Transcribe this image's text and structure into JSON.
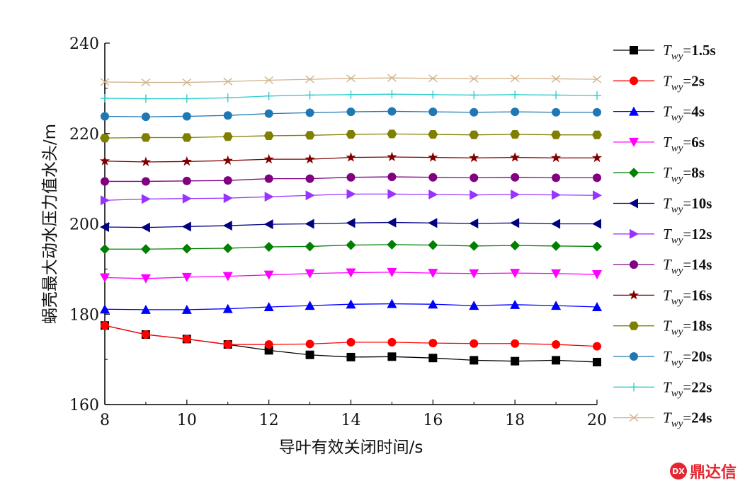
{
  "chart_data": {
    "type": "line",
    "xlabel": "导叶有效关闭时间/s",
    "ylabel": "蜗壳最大动水压力值水头/m",
    "xlim": [
      8,
      20
    ],
    "ylim": [
      160,
      240
    ],
    "xticks": [
      "8",
      "10",
      "12",
      "14",
      "16",
      "18",
      "20"
    ],
    "yticks": [
      "160",
      "180",
      "200",
      "220",
      "240"
    ],
    "grid": false,
    "legend_position": "right",
    "x": [
      8,
      9,
      10,
      11,
      12,
      13,
      14,
      15,
      16,
      17,
      18,
      19,
      20
    ],
    "series": [
      {
        "name": "Twy=1.5s",
        "symbol": "T",
        "sub": "wy",
        "eq": "=",
        "value": "1.5",
        "unit": "s",
        "color": "#000000",
        "marker": "square",
        "values": [
          177.5,
          175.5,
          174.5,
          173.3,
          172.0,
          171.0,
          170.5,
          170.6,
          170.3,
          169.8,
          169.6,
          169.8,
          169.4
        ]
      },
      {
        "name": "Twy=2s",
        "symbol": "T",
        "sub": "wy",
        "eq": "=",
        "value": "2",
        "unit": "s",
        "color": "#ff0000",
        "marker": "circle",
        "values": [
          177.5,
          175.5,
          174.5,
          173.3,
          173.3,
          173.4,
          173.8,
          173.8,
          173.6,
          173.5,
          173.5,
          173.3,
          172.9
        ]
      },
      {
        "name": "Twy=4s",
        "symbol": "T",
        "sub": "wy",
        "eq": "=",
        "value": "4",
        "unit": "s",
        "color": "#0000ff",
        "marker": "triangle-up",
        "values": [
          181.1,
          181.0,
          181.0,
          181.2,
          181.6,
          181.9,
          182.2,
          182.3,
          182.2,
          181.9,
          182.1,
          181.9,
          181.6
        ]
      },
      {
        "name": "Twy=6s",
        "symbol": "T",
        "sub": "wy",
        "eq": "=",
        "value": "6",
        "unit": "s",
        "color": "#ff00ff",
        "marker": "triangle-down",
        "values": [
          188.1,
          187.9,
          188.2,
          188.4,
          188.7,
          189.0,
          189.2,
          189.3,
          189.1,
          189.0,
          189.1,
          189.0,
          188.8
        ]
      },
      {
        "name": "Twy=8s",
        "symbol": "T",
        "sub": "wy",
        "eq": "=",
        "value": "8",
        "unit": "s",
        "color": "#008000",
        "marker": "diamond",
        "values": [
          194.4,
          194.4,
          194.5,
          194.6,
          194.9,
          195.0,
          195.3,
          195.4,
          195.3,
          195.1,
          195.2,
          195.1,
          195.0
        ]
      },
      {
        "name": "Twy=10s",
        "symbol": "T",
        "sub": "wy",
        "eq": "=",
        "value": "10",
        "unit": "s",
        "color": "#000080",
        "marker": "triangle-left",
        "values": [
          199.3,
          199.2,
          199.4,
          199.6,
          199.9,
          200.0,
          200.2,
          200.3,
          200.2,
          200.1,
          200.2,
          200.0,
          200.0
        ]
      },
      {
        "name": "Twy=12s",
        "symbol": "T",
        "sub": "wy",
        "eq": "=",
        "value": "12",
        "unit": "s",
        "color": "#9933ff",
        "marker": "triangle-right",
        "values": [
          205.2,
          205.5,
          205.6,
          205.7,
          206.0,
          206.3,
          206.6,
          206.6,
          206.5,
          206.4,
          206.5,
          206.4,
          206.3
        ]
      },
      {
        "name": "Twy=14s",
        "symbol": "T",
        "sub": "wy",
        "eq": "=",
        "value": "14",
        "unit": "s",
        "color": "#800080",
        "marker": "circle",
        "values": [
          209.4,
          209.4,
          209.5,
          209.6,
          210.0,
          210.0,
          210.3,
          210.4,
          210.3,
          210.2,
          210.3,
          210.2,
          210.2
        ]
      },
      {
        "name": "Twy=16s",
        "symbol": "T",
        "sub": "wy",
        "eq": "=",
        "value": "16",
        "unit": "s",
        "color": "#800000",
        "marker": "star",
        "values": [
          213.9,
          213.7,
          213.8,
          214.0,
          214.3,
          214.3,
          214.7,
          214.8,
          214.7,
          214.6,
          214.7,
          214.6,
          214.6
        ]
      },
      {
        "name": "Twy=18s",
        "symbol": "T",
        "sub": "wy",
        "eq": "=",
        "value": "18",
        "unit": "s",
        "color": "#808000",
        "marker": "hexagon",
        "values": [
          219.0,
          219.1,
          219.1,
          219.3,
          219.5,
          219.6,
          219.8,
          219.9,
          219.8,
          219.7,
          219.8,
          219.7,
          219.7
        ]
      },
      {
        "name": "Twy=20s",
        "symbol": "T",
        "sub": "wy",
        "eq": "=",
        "value": "20",
        "unit": "s",
        "color": "#1f77b4",
        "marker": "circle",
        "values": [
          223.8,
          223.7,
          223.8,
          224.0,
          224.4,
          224.6,
          224.8,
          224.9,
          224.8,
          224.7,
          224.8,
          224.7,
          224.7
        ]
      },
      {
        "name": "Twy=22s",
        "symbol": "T",
        "sub": "wy",
        "eq": "=",
        "value": "22",
        "unit": "s",
        "color": "#33cccc",
        "marker": "plus",
        "values": [
          227.8,
          227.7,
          227.7,
          227.9,
          228.3,
          228.5,
          228.6,
          228.7,
          228.6,
          228.5,
          228.6,
          228.5,
          228.4
        ]
      },
      {
        "name": "Twy=24s",
        "symbol": "T",
        "sub": "wy",
        "eq": "=",
        "value": "24",
        "unit": "s",
        "color": "#d2b48c",
        "marker": "x",
        "values": [
          231.4,
          231.3,
          231.3,
          231.5,
          231.8,
          232.0,
          232.2,
          232.3,
          232.2,
          232.1,
          232.2,
          232.1,
          232.0
        ]
      }
    ]
  },
  "watermark": {
    "logo_text": "DX",
    "text": "鼎达信"
  }
}
